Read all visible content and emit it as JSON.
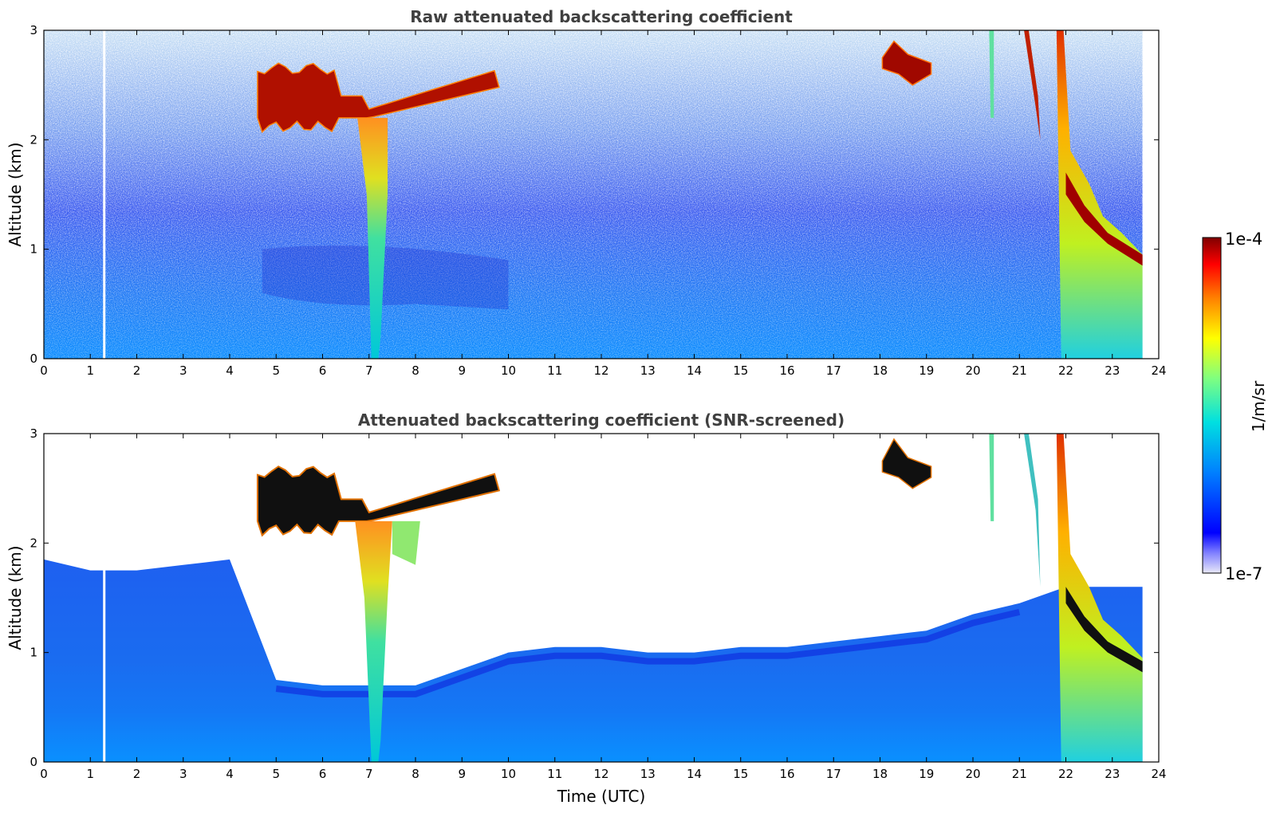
{
  "chart_data": [
    {
      "type": "heatmap",
      "title": "Raw attenuated backscattering coefficient",
      "xlabel": "",
      "ylabel": "Altitude (km)",
      "xlim": [
        0,
        24
      ],
      "ylim": [
        0,
        3
      ],
      "xticks": [
        "0",
        "1",
        "2",
        "3",
        "4",
        "5",
        "6",
        "7",
        "8",
        "9",
        "10",
        "11",
        "12",
        "13",
        "14",
        "15",
        "16",
        "17",
        "18",
        "19",
        "20",
        "21",
        "22",
        "23",
        "24"
      ],
      "yticks": [
        "0",
        "1",
        "2",
        "3"
      ],
      "data_gap_time": 1.3,
      "data_end_time": 23.65,
      "features": [
        {
          "name": "cloud layer",
          "t_start": 4.6,
          "t_end": 9.8,
          "alt_base": 2.1,
          "alt_top": 2.7,
          "level": 0.95
        },
        {
          "name": "precipitation shaft",
          "t_start": 6.8,
          "t_end": 7.3,
          "alt_base": 0,
          "alt_top": 2.2,
          "level": 0.6
        },
        {
          "name": "high cloud",
          "t_start": 18.1,
          "t_end": 19.1,
          "alt_base": 2.5,
          "alt_top": 2.9,
          "level": 0.95
        },
        {
          "name": "descending cloud",
          "t_start": 21.8,
          "t_end": 23.65,
          "alt_base": 0.8,
          "alt_top": 3,
          "level": 0.85
        }
      ]
    },
    {
      "type": "heatmap",
      "title": "Attenuated backscattering coefficient (SNR-screened)",
      "xlabel": "Time (UTC)",
      "ylabel": "Altitude (km)",
      "xlim": [
        0,
        24
      ],
      "ylim": [
        0,
        3
      ],
      "xticks": [
        "0",
        "1",
        "2",
        "3",
        "4",
        "5",
        "6",
        "7",
        "8",
        "9",
        "10",
        "11",
        "12",
        "13",
        "14",
        "15",
        "16",
        "17",
        "18",
        "19",
        "20",
        "21",
        "22",
        "23",
        "24"
      ],
      "yticks": [
        "0",
        "1",
        "2",
        "3"
      ],
      "screen_height_by_hour": [
        1.85,
        1.75,
        1.75,
        1.8,
        1.85,
        0.75,
        0.7,
        0.7,
        0.7,
        0.85,
        1.0,
        1.05,
        1.05,
        1.0,
        1.0,
        1.05,
        1.05,
        1.1,
        1.15,
        1.2,
        1.35,
        1.45,
        1.6,
        1.6,
        1.6
      ]
    }
  ],
  "colorbar": {
    "label": "1/m/sr",
    "max_label": "1e-4",
    "min_label": "1e-7",
    "colors": [
      "#e8e8f8",
      "#0000ff",
      "#0080ff",
      "#00e0e0",
      "#7fff80",
      "#ffff00",
      "#ff8000",
      "#ff0000",
      "#800000"
    ]
  }
}
